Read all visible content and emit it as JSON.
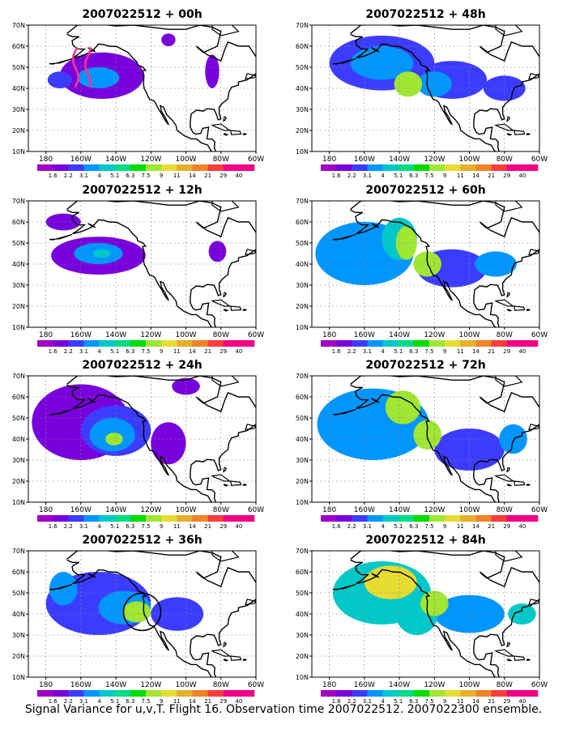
{
  "panels": [
    {
      "title": "2007022512 + 00h",
      "blobs": [
        {
          "cx": -148,
          "cy": 46,
          "rx": 24,
          "ry": 11,
          "lv": 1
        },
        {
          "cx": -150,
          "cy": 45,
          "rx": 12,
          "ry": 5,
          "lv": 3
        },
        {
          "cx": -172,
          "cy": 44,
          "rx": 7,
          "ry": 4,
          "lv": 2
        },
        {
          "cx": -110,
          "cy": 63,
          "rx": 4,
          "ry": 3,
          "lv": 1
        },
        {
          "cx": -85,
          "cy": 48,
          "rx": 4,
          "ry": 8,
          "lv": 1
        }
      ]
    },
    {
      "title": "2007022512 + 12h",
      "blobs": [
        {
          "cx": -150,
          "cy": 44,
          "rx": 27,
          "ry": 9,
          "lv": 1
        },
        {
          "cx": -150,
          "cy": 45,
          "rx": 14,
          "ry": 5,
          "lv": 3
        },
        {
          "cx": -148,
          "cy": 45,
          "rx": 5,
          "ry": 2,
          "lv": 4
        },
        {
          "cx": -170,
          "cy": 60,
          "rx": 10,
          "ry": 4,
          "lv": 1
        },
        {
          "cx": -82,
          "cy": 46,
          "rx": 5,
          "ry": 5,
          "lv": 1
        }
      ]
    },
    {
      "title": "2007022512 + 24h",
      "blobs": [
        {
          "cx": -160,
          "cy": 48,
          "rx": 28,
          "ry": 18,
          "lv": 1
        },
        {
          "cx": -140,
          "cy": 44,
          "rx": 20,
          "ry": 12,
          "lv": 2
        },
        {
          "cx": -142,
          "cy": 42,
          "rx": 13,
          "ry": 8,
          "lv": 3
        },
        {
          "cx": -141,
          "cy": 40,
          "rx": 5,
          "ry": 3,
          "lv": 5
        },
        {
          "cx": -110,
          "cy": 38,
          "rx": 10,
          "ry": 10,
          "lv": 1
        },
        {
          "cx": -100,
          "cy": 65,
          "rx": 8,
          "ry": 4,
          "lv": 1
        }
      ]
    },
    {
      "title": "2007022512 + 36h",
      "blobs": [
        {
          "cx": -150,
          "cy": 45,
          "rx": 30,
          "ry": 15,
          "lv": 2
        },
        {
          "cx": -135,
          "cy": 43,
          "rx": 15,
          "ry": 8,
          "lv": 3
        },
        {
          "cx": -128,
          "cy": 41,
          "rx": 8,
          "ry": 5,
          "lv": 5
        },
        {
          "cx": -105,
          "cy": 40,
          "rx": 15,
          "ry": 8,
          "lv": 2
        },
        {
          "cx": -170,
          "cy": 52,
          "rx": 8,
          "ry": 8,
          "lv": 3
        }
      ]
    },
    {
      "title": "2007022512 + 48h",
      "blobs": [
        {
          "cx": -150,
          "cy": 52,
          "rx": 30,
          "ry": 13,
          "lv": 2
        },
        {
          "cx": -150,
          "cy": 52,
          "rx": 18,
          "ry": 8,
          "lv": 3
        },
        {
          "cx": -135,
          "cy": 42,
          "rx": 8,
          "ry": 6,
          "lv": 5
        },
        {
          "cx": -110,
          "cy": 44,
          "rx": 20,
          "ry": 9,
          "lv": 2
        },
        {
          "cx": -120,
          "cy": 42,
          "rx": 10,
          "ry": 6,
          "lv": 3
        },
        {
          "cx": -80,
          "cy": 40,
          "rx": 12,
          "ry": 6,
          "lv": 2
        }
      ]
    },
    {
      "title": "2007022512 + 60h",
      "blobs": [
        {
          "cx": -160,
          "cy": 45,
          "rx": 28,
          "ry": 15,
          "lv": 3
        },
        {
          "cx": -140,
          "cy": 52,
          "rx": 10,
          "ry": 10,
          "lv": 4
        },
        {
          "cx": -136,
          "cy": 50,
          "rx": 6,
          "ry": 8,
          "lv": 5
        },
        {
          "cx": -124,
          "cy": 40,
          "rx": 8,
          "ry": 6,
          "lv": 5
        },
        {
          "cx": -110,
          "cy": 38,
          "rx": 20,
          "ry": 9,
          "lv": 2
        },
        {
          "cx": -85,
          "cy": 40,
          "rx": 12,
          "ry": 6,
          "lv": 3
        }
      ]
    },
    {
      "title": "2007022512 + 72h",
      "blobs": [
        {
          "cx": -155,
          "cy": 47,
          "rx": 32,
          "ry": 17,
          "lv": 3
        },
        {
          "cx": -138,
          "cy": 55,
          "rx": 10,
          "ry": 8,
          "lv": 5
        },
        {
          "cx": -124,
          "cy": 42,
          "rx": 8,
          "ry": 7,
          "lv": 5
        },
        {
          "cx": -100,
          "cy": 35,
          "rx": 20,
          "ry": 10,
          "lv": 2
        },
        {
          "cx": -75,
          "cy": 40,
          "rx": 8,
          "ry": 7,
          "lv": 3
        }
      ]
    },
    {
      "title": "2007022512 + 84h",
      "blobs": [
        {
          "cx": -150,
          "cy": 50,
          "rx": 28,
          "ry": 15,
          "lv": 4
        },
        {
          "cx": -145,
          "cy": 55,
          "rx": 15,
          "ry": 8,
          "lv": 6
        },
        {
          "cx": -130,
          "cy": 40,
          "rx": 12,
          "ry": 10,
          "lv": 4
        },
        {
          "cx": -120,
          "cy": 45,
          "rx": 8,
          "ry": 6,
          "lv": 5
        },
        {
          "cx": -100,
          "cy": 40,
          "rx": 20,
          "ry": 9,
          "lv": 3
        },
        {
          "cx": -70,
          "cy": 40,
          "rx": 8,
          "ry": 5,
          "lv": 4
        }
      ]
    }
  ],
  "axes": {
    "lat_ticks": [
      "10N",
      "20N",
      "30N",
      "40N",
      "50N",
      "60N",
      "70N"
    ],
    "lon_ticks": [
      "180",
      "160W",
      "140W",
      "120W",
      "100W",
      "80W",
      "60W"
    ]
  },
  "colorbar": {
    "labels": [
      "1.6",
      "2.2",
      "3.1",
      "4",
      "5.1",
      "6.3",
      "7.5",
      "9",
      "11",
      "14",
      "21",
      "29",
      "40"
    ],
    "colors": [
      "#a000c8",
      "#7800dc",
      "#3c3cff",
      "#0096ff",
      "#00c8c8",
      "#00dc82",
      "#00dc00",
      "#a0e632",
      "#e6dc32",
      "#e6af2d",
      "#f08228",
      "#fa3c3c",
      "#f00082"
    ]
  },
  "field_levels": [
    "#a000c8",
    "#7800dc",
    "#3c3cff",
    "#0096ff",
    "#00c8c8",
    "#a0e632",
    "#e6dc32",
    "#e6af2d"
  ],
  "observation_path_color": "#ff3296",
  "caption": "Signal Variance for u,v,T. Flight 16. Observation time 2007022512. 2007022300 ensemble."
}
